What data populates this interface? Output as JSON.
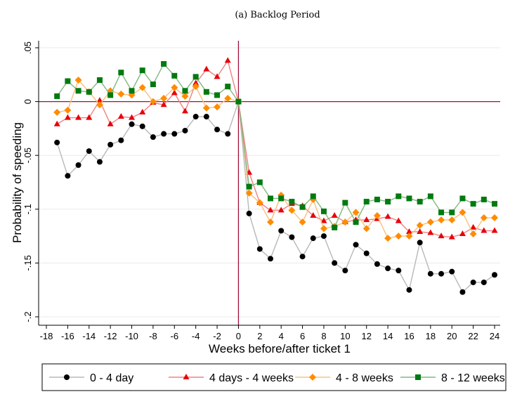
{
  "chart_data": {
    "type": "line",
    "title": "(a) Backlog Period",
    "xlabel": "Weeks before/after ticket 1",
    "ylabel": "Probability of speeding",
    "xlim": [
      -18,
      24
    ],
    "ylim": [
      -0.2,
      0.05
    ],
    "xticks": [
      -18,
      -16,
      -14,
      -12,
      -10,
      -8,
      -6,
      -4,
      -2,
      0,
      2,
      4,
      6,
      8,
      10,
      12,
      14,
      16,
      18,
      20,
      22,
      24
    ],
    "yticks": [
      0.05,
      0,
      -0.05,
      -0.1,
      -0.15,
      -0.2
    ],
    "ytick_labels": [
      ".05",
      "0",
      "-.05",
      "-.1",
      "-.15",
      "-.2"
    ],
    "grid": "horizontal",
    "reference_lines": {
      "x": 0,
      "y": 0,
      "color": "#a0103a"
    },
    "legend_position": "bottom",
    "x": [
      -17,
      -16,
      -15,
      -14,
      -13,
      -12,
      -11,
      -10,
      -9,
      -8,
      -7,
      -6,
      -5,
      -4,
      -3,
      -2,
      -1,
      0,
      1,
      2,
      3,
      4,
      5,
      6,
      7,
      8,
      9,
      10,
      11,
      12,
      13,
      14,
      15,
      16,
      17,
      18,
      19,
      20,
      21,
      22,
      23,
      24
    ],
    "series": [
      {
        "name": "0 - 4 day",
        "marker": "circle",
        "color": "#000000",
        "line_color": "#b8b8b8",
        "values": [
          -0.038,
          -0.069,
          -0.059,
          -0.046,
          -0.056,
          -0.04,
          -0.036,
          -0.021,
          -0.023,
          -0.033,
          -0.03,
          -0.03,
          -0.027,
          -0.014,
          -0.014,
          -0.026,
          -0.03,
          0,
          -0.104,
          -0.137,
          -0.146,
          -0.12,
          -0.126,
          -0.144,
          -0.127,
          -0.125,
          -0.15,
          -0.157,
          -0.133,
          -0.141,
          -0.151,
          -0.155,
          -0.157,
          -0.175,
          -0.131,
          -0.16,
          -0.16,
          -0.158,
          -0.177,
          -0.168,
          -0.168,
          -0.161
        ]
      },
      {
        "name": "4 days - 4 weeks",
        "marker": "triangle",
        "color": "#e8000b",
        "line_color": "#f08080",
        "values": [
          -0.021,
          -0.015,
          -0.015,
          -0.015,
          0.001,
          -0.021,
          -0.014,
          -0.015,
          -0.01,
          -0.001,
          -0.003,
          0.008,
          -0.009,
          0.017,
          0.03,
          0.023,
          0.038,
          0,
          -0.066,
          -0.094,
          -0.101,
          -0.101,
          -0.095,
          -0.097,
          -0.106,
          -0.111,
          -0.106,
          -0.112,
          -0.11,
          -0.11,
          -0.109,
          -0.107,
          -0.111,
          -0.121,
          -0.121,
          -0.122,
          -0.125,
          -0.126,
          -0.123,
          -0.117,
          -0.12,
          -0.12
        ]
      },
      {
        "name": "4 - 8 weeks",
        "marker": "diamond",
        "color": "#ff8c00",
        "line_color": "#f8c080",
        "values": [
          -0.01,
          -0.008,
          0.02,
          0.009,
          -0.003,
          0.01,
          0.007,
          0.006,
          0.013,
          0,
          0.003,
          0.013,
          0.005,
          0.014,
          -0.006,
          -0.005,
          0.003,
          0,
          -0.085,
          -0.094,
          -0.112,
          -0.087,
          -0.101,
          -0.112,
          -0.091,
          -0.118,
          -0.116,
          -0.112,
          -0.103,
          -0.118,
          -0.106,
          -0.127,
          -0.125,
          -0.125,
          -0.115,
          -0.112,
          -0.11,
          -0.11,
          -0.103,
          -0.123,
          -0.108,
          -0.108
        ]
      },
      {
        "name": "8 - 12 weeks",
        "marker": "square",
        "color": "#007a0f",
        "line_color": "#80b880",
        "values": [
          0.005,
          0.019,
          0.01,
          0.009,
          0.02,
          0.006,
          0.027,
          0.01,
          0.029,
          0.016,
          0.035,
          0.024,
          0.01,
          0.023,
          0.009,
          0.006,
          0.014,
          0,
          -0.079,
          -0.075,
          -0.09,
          -0.09,
          -0.093,
          -0.098,
          -0.088,
          -0.102,
          -0.117,
          -0.094,
          -0.112,
          -0.093,
          -0.091,
          -0.093,
          -0.088,
          -0.09,
          -0.093,
          -0.088,
          -0.103,
          -0.103,
          -0.09,
          -0.095,
          -0.091,
          -0.095
        ]
      }
    ]
  }
}
